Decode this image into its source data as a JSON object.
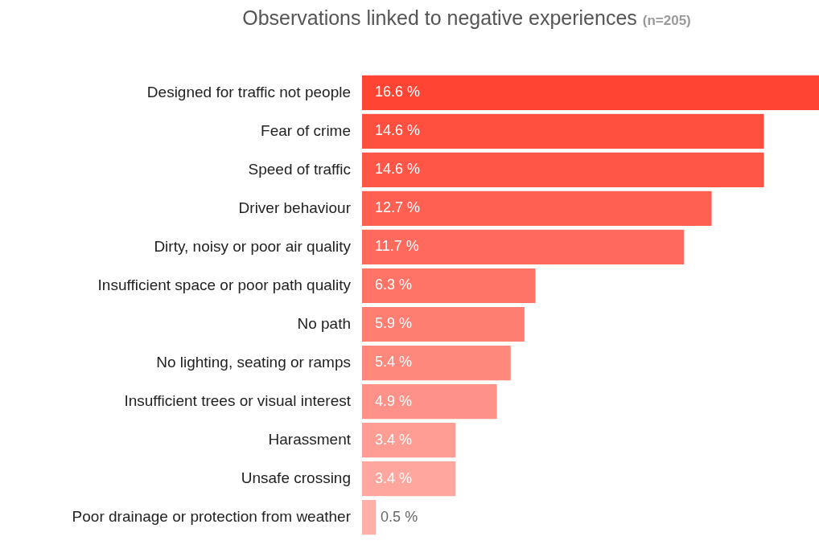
{
  "chart_data": {
    "type": "bar",
    "orientation": "horizontal",
    "title": "Observations linked to negative experiences",
    "subtitle": "(n=205)",
    "categories": [
      "Designed for traffic not people",
      "Fear of crime",
      "Speed of traffic",
      "Driver behaviour",
      "Dirty, noisy or poor air quality",
      "Insufficient space or poor path quality",
      "No path",
      "No lighting, seating or ramps",
      "Insufficient trees or visual interest",
      "Harassment",
      "Unsafe crossing",
      "Poor drainage or protection from weather"
    ],
    "values": [
      16.6,
      14.6,
      14.6,
      12.7,
      11.7,
      6.3,
      5.9,
      5.4,
      4.9,
      3.4,
      3.4,
      0.5
    ],
    "value_labels": [
      "16.6 %",
      "14.6 %",
      "14.6 %",
      "12.7 %",
      "11.7 %",
      "6.3 %",
      "5.9 %",
      "5.4 %",
      "4.9 %",
      "3.4 %",
      "3.4 %",
      "0.5 %"
    ],
    "colors": [
      "#ff4433",
      "#ff4f3f",
      "#ff5648",
      "#ff6052",
      "#ff6a5d",
      "#ff7467",
      "#ff7e72",
      "#ff887d",
      "#ff9288",
      "#ff9c93",
      "#ffa69e",
      "#ffb0a9"
    ],
    "grid": false,
    "legend": false
  }
}
